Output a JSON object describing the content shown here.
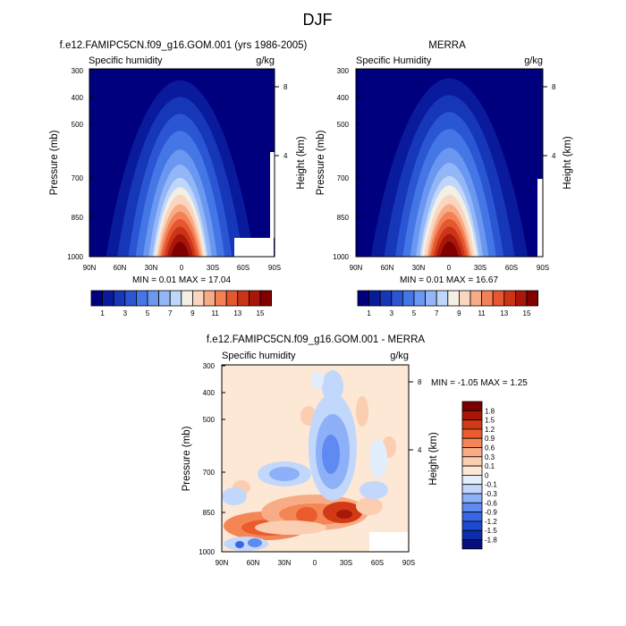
{
  "page_title": "DJF",
  "colors": {
    "seasonal": [
      "#00007f",
      "#0a1a9c",
      "#1537b8",
      "#2a56d3",
      "#4476e6",
      "#6a97f0",
      "#93b6f6",
      "#bfd6fb",
      "#f3efe4",
      "#fad5bf",
      "#f7ac88",
      "#f48156",
      "#e4572f",
      "#cc3418",
      "#a8170a",
      "#800000"
    ],
    "diff": [
      "#050f80",
      "#0c2dab",
      "#1c4ad0",
      "#3767e6",
      "#5f8af2",
      "#8db0f8",
      "#c1d7fb",
      "#e3eefc",
      "#fde7d5",
      "#fbcdb1",
      "#f8ac86",
      "#f48656",
      "#ea5c2d",
      "#d13a14",
      "#a81808",
      "#7a0000"
    ]
  },
  "chart_data": [
    {
      "type": "heatmap",
      "title": "f.e12.FAMIPC5CN.f09_g16.GOM.001 (yrs 1986-2005)",
      "left_label": "Specific humidity",
      "right_label": "g/kg",
      "ylabel": "Pressure (mb)",
      "y2label": "Height (km)",
      "x_ticks": [
        "90N",
        "60N",
        "30N",
        "0",
        "30S",
        "60S",
        "90S"
      ],
      "y_ticks": [
        "300",
        "400",
        "500",
        "700",
        "850",
        "1000"
      ],
      "y2_ticks": [
        "8",
        "4"
      ],
      "stats": "MIN =  0.01  MAX =  17.04",
      "min": 0.01,
      "max": 17.04,
      "colorbar_labels": [
        "1",
        "3",
        "5",
        "7",
        "9",
        "11",
        "13",
        "15"
      ]
    },
    {
      "type": "heatmap",
      "title": "MERRA",
      "left_label": "Specific Humidity",
      "right_label": "g/kg",
      "ylabel": "Pressure (mb)",
      "y2label": "Height (km)",
      "x_ticks": [
        "90N",
        "60N",
        "30N",
        "0",
        "30S",
        "60S",
        "90S"
      ],
      "y_ticks": [
        "300",
        "400",
        "500",
        "700",
        "850",
        "1000"
      ],
      "y2_ticks": [
        "8",
        "4"
      ],
      "stats": "MIN =  0.01  MAX =  16.67",
      "min": 0.01,
      "max": 16.67,
      "colorbar_labels": [
        "1",
        "3",
        "5",
        "7",
        "9",
        "11",
        "13",
        "15"
      ]
    },
    {
      "type": "heatmap",
      "title": "f.e12.FAMIPC5CN.f09_g16.GOM.001 - MERRA",
      "left_label": "Specific humidity",
      "right_label": "g/kg",
      "ylabel": "Pressure (mb)",
      "y2label": "Height (km)",
      "x_ticks": [
        "90N",
        "60N",
        "30N",
        "0",
        "30S",
        "60S",
        "90S"
      ],
      "y_ticks": [
        "300",
        "400",
        "500",
        "700",
        "850",
        "1000"
      ],
      "y2_ticks": [
        "8",
        "4"
      ],
      "stats": "MIN = -1.05  MAX =   1.25",
      "min": -1.05,
      "max": 1.25,
      "colorbar_labels": [
        "1.8",
        "1.5",
        "1.2",
        "0.9",
        "0.6",
        "0.3",
        "0.1",
        "0",
        "-0.1",
        "-0.3",
        "-0.6",
        "-0.9",
        "-1.2",
        "-1.5",
        "-1.8"
      ]
    }
  ]
}
